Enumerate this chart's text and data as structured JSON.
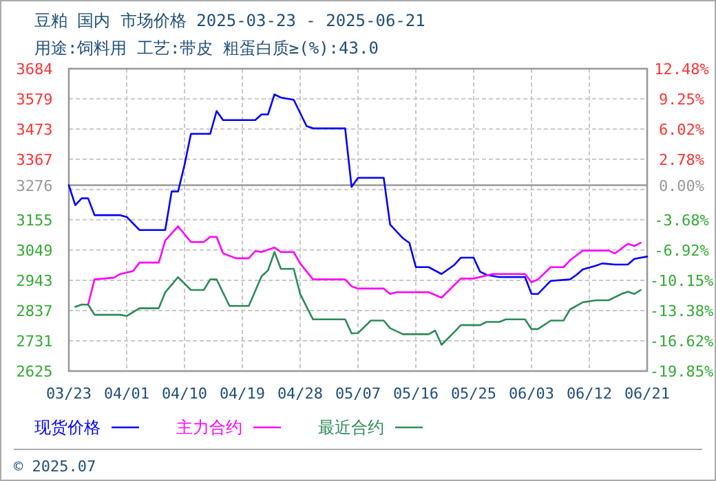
{
  "chart_data": {
    "type": "line",
    "title": "豆粕 国内 市场价格 2025-03-23 - 2025-06-21",
    "subtitle": "用途:饲料用 工艺:带皮 粗蛋白质≥(%):43.0",
    "xlim": [
      "2025-03-23",
      "2025-06-21"
    ],
    "xticks": [
      {
        "value": "2025-03-23",
        "label": "03/23"
      },
      {
        "value": "2025-04-01",
        "label": "04/01"
      },
      {
        "value": "2025-04-10",
        "label": "04/10"
      },
      {
        "value": "2025-04-19",
        "label": "04/19"
      },
      {
        "value": "2025-04-28",
        "label": "04/28"
      },
      {
        "value": "2025-05-07",
        "label": "05/07"
      },
      {
        "value": "2025-05-16",
        "label": "05/16"
      },
      {
        "value": "2025-05-25",
        "label": "05/25"
      },
      {
        "value": "2025-06-03",
        "label": "06/03"
      },
      {
        "value": "2025-06-12",
        "label": "06/12"
      },
      {
        "value": "2025-06-21",
        "label": "06/21"
      }
    ],
    "ylim": [
      2625,
      3684
    ],
    "yticks": [
      3684,
      3579,
      3473,
      3367,
      {
        "value": 3261,
        "label": null
      },
      3276,
      3155,
      3049,
      2943,
      2837,
      2731,
      2625
    ],
    "y2lim": [
      -19.85,
      12.48
    ],
    "y2ticks": [
      {
        "value": 12.48,
        "label": "12.48%"
      },
      {
        "value": 9.25,
        "label": "9.25%"
      },
      {
        "value": 6.02,
        "label": "6.02%"
      },
      {
        "value": 2.78,
        "label": "2.78%"
      },
      {
        "value": 0,
        "label": "0.00%"
      },
      {
        "value": -3.68,
        "label": "-3.68%"
      },
      {
        "value": -6.92,
        "label": "-6.92%"
      },
      {
        "value": -10.15,
        "label": "-10.15%"
      },
      {
        "value": -13.38,
        "label": "-13.38%"
      },
      {
        "value": -16.62,
        "label": "-16.62%"
      },
      {
        "value": -19.85,
        "label": "-19.85%"
      }
    ],
    "ref_lines": [
      {
        "axis": "y",
        "value": 3276,
        "color": "#999999",
        "line_style": "solid"
      }
    ],
    "grid": true,
    "legend": "bottom",
    "line_style": "solid",
    "annotations": [
      "© 2025.07"
    ],
    "series": [
      {
        "name": "现货价格",
        "color": "#0000ff",
        "x": [
          "2025-03-23",
          "2025-03-24",
          "2025-03-25",
          "2025-03-26",
          "2025-03-27",
          "2025-03-31",
          "2025-04-01",
          "2025-04-03",
          "2025-04-07",
          "2025-04-08",
          "2025-04-09",
          "2025-04-10",
          "2025-04-11",
          "2025-04-14",
          "2025-04-15",
          "2025-04-16",
          "2025-04-21",
          "2025-04-22",
          "2025-04-23",
          "2025-04-24",
          "2025-04-25",
          "2025-04-27",
          "2025-04-29",
          "2025-04-30",
          "2025-05-05",
          "2025-05-06",
          "2025-05-07",
          "2025-05-11",
          "2025-05-12",
          "2025-05-14",
          "2025-05-15",
          "2025-05-16",
          "2025-05-18",
          "2025-05-20",
          "2025-05-22",
          "2025-05-23",
          "2025-05-25",
          "2025-05-26",
          "2025-05-27",
          "2025-05-29",
          "2025-06-02",
          "2025-06-03",
          "2025-06-04",
          "2025-06-06",
          "2025-06-09",
          "2025-06-10",
          "2025-06-11",
          "2025-06-13",
          "2025-06-14",
          "2025-06-16",
          "2025-06-18",
          "2025-06-19",
          "2025-06-21"
        ],
        "values": [
          3276,
          3206,
          3230,
          3230,
          3171,
          3171,
          3165,
          3119,
          3119,
          3254,
          3254,
          3347,
          3456,
          3456,
          3536,
          3504,
          3504,
          3524,
          3524,
          3594,
          3583,
          3575,
          3483,
          3475,
          3475,
          3270,
          3302,
          3302,
          3138,
          3090,
          3074,
          2989,
          2989,
          2965,
          2997,
          3022,
          3022,
          2973,
          2962,
          2954,
          2954,
          2895,
          2895,
          2941,
          2946,
          2962,
          2981,
          2994,
          3002,
          2998,
          2998,
          3018,
          3026
        ]
      },
      {
        "name": "主力合约",
        "color": "#ff00ff",
        "x": [
          "2025-03-26",
          "2025-03-27",
          "2025-03-30",
          "2025-03-31",
          "2025-04-02",
          "2025-04-03",
          "2025-04-06",
          "2025-04-07",
          "2025-04-09",
          "2025-04-11",
          "2025-04-13",
          "2025-04-14",
          "2025-04-15",
          "2025-04-16",
          "2025-04-18",
          "2025-04-20",
          "2025-04-21",
          "2025-04-22",
          "2025-04-24",
          "2025-04-25",
          "2025-04-27",
          "2025-04-28",
          "2025-04-30",
          "2025-05-05",
          "2025-05-06",
          "2025-05-07",
          "2025-05-11",
          "2025-05-12",
          "2025-05-13",
          "2025-05-18",
          "2025-05-20",
          "2025-05-23",
          "2025-05-25",
          "2025-05-28",
          "2025-06-02",
          "2025-06-03",
          "2025-06-04",
          "2025-06-06",
          "2025-06-08",
          "2025-06-09",
          "2025-06-11",
          "2025-06-15",
          "2025-06-16",
          "2025-06-18",
          "2025-06-19",
          "2025-06-20"
        ],
        "values": [
          2858,
          2946,
          2952,
          2965,
          2975,
          3005,
          3005,
          3082,
          3132,
          3077,
          3077,
          3095,
          3095,
          3037,
          3020,
          3020,
          3045,
          3042,
          3058,
          3042,
          3042,
          3002,
          2946,
          2946,
          2922,
          2914,
          2914,
          2895,
          2901,
          2901,
          2882,
          2949,
          2949,
          2965,
          2965,
          2936,
          2946,
          2989,
          2989,
          3013,
          3047,
          3047,
          3037,
          3071,
          3063,
          3074
        ]
      },
      {
        "name": "最近合约",
        "color": "#2e8b57",
        "x": [
          "2025-03-24",
          "2025-03-25",
          "2025-03-26",
          "2025-03-27",
          "2025-03-31",
          "2025-04-01",
          "2025-04-03",
          "2025-04-06",
          "2025-04-07",
          "2025-04-09",
          "2025-04-11",
          "2025-04-13",
          "2025-04-14",
          "2025-04-15",
          "2025-04-17",
          "2025-04-20",
          "2025-04-22",
          "2025-04-23",
          "2025-04-24",
          "2025-04-25",
          "2025-04-27",
          "2025-04-28",
          "2025-04-30",
          "2025-05-05",
          "2025-05-06",
          "2025-05-07",
          "2025-05-09",
          "2025-05-11",
          "2025-05-12",
          "2025-05-14",
          "2025-05-18",
          "2025-05-19",
          "2025-05-20",
          "2025-05-22",
          "2025-05-23",
          "2025-05-26",
          "2025-05-27",
          "2025-05-29",
          "2025-05-30",
          "2025-06-02",
          "2025-06-03",
          "2025-06-04",
          "2025-06-06",
          "2025-06-08",
          "2025-06-09",
          "2025-06-11",
          "2025-06-13",
          "2025-06-15",
          "2025-06-17",
          "2025-06-18",
          "2025-06-19",
          "2025-06-20"
        ],
        "values": [
          2850,
          2858,
          2858,
          2822,
          2822,
          2818,
          2845,
          2845,
          2901,
          2954,
          2909,
          2909,
          2946,
          2946,
          2853,
          2853,
          2957,
          2978,
          3042,
          2983,
          2983,
          2895,
          2806,
          2806,
          2757,
          2758,
          2802,
          2802,
          2775,
          2754,
          2754,
          2767,
          2717,
          2762,
          2786,
          2786,
          2797,
          2797,
          2806,
          2806,
          2772,
          2772,
          2802,
          2802,
          2841,
          2866,
          2873,
          2873,
          2895,
          2903,
          2895,
          2909
        ]
      }
    ]
  }
}
